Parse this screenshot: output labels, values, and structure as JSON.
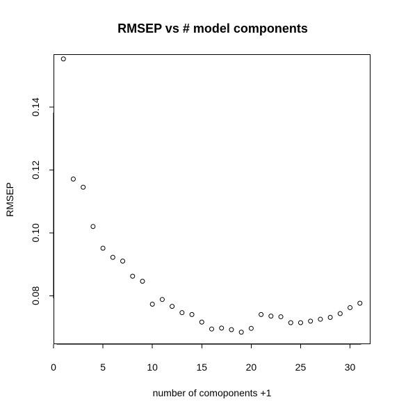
{
  "chart_data": {
    "type": "scatter",
    "title": "RMSEP vs # model components",
    "xlabel": "number of comoponents +1",
    "ylabel": "RMSEP",
    "xlim": [
      0,
      32
    ],
    "ylim": [
      0.0648,
      0.1568
    ],
    "x_ticks": [
      0,
      5,
      10,
      15,
      20,
      25,
      30
    ],
    "y_ticks": [
      0.08,
      0.1,
      0.12,
      0.14
    ],
    "x_tick_labels": [
      "0",
      "5",
      "10",
      "15",
      "20",
      "25",
      "30"
    ],
    "y_tick_labels": [
      "0.08",
      "0.10",
      "0.12",
      "0.14"
    ],
    "grid": false,
    "legend": "none",
    "series": [
      {
        "x": [
          1,
          2,
          3,
          4,
          5,
          6,
          7,
          8,
          9,
          10,
          11,
          12,
          13,
          14,
          15,
          16,
          17,
          18,
          19,
          20,
          21,
          22,
          23,
          24,
          25,
          26,
          27,
          28,
          29,
          30,
          31
        ],
        "y": [
          0.1553,
          0.1171,
          0.1145,
          0.102,
          0.0951,
          0.0922,
          0.091,
          0.0862,
          0.0846,
          0.0773,
          0.0788,
          0.0766,
          0.0746,
          0.074,
          0.0716,
          0.0694,
          0.0697,
          0.0692,
          0.0684,
          0.0696,
          0.074,
          0.0735,
          0.0733,
          0.0714,
          0.0714,
          0.0719,
          0.0725,
          0.0731,
          0.0743,
          0.0762,
          0.0776
        ]
      }
    ]
  }
}
